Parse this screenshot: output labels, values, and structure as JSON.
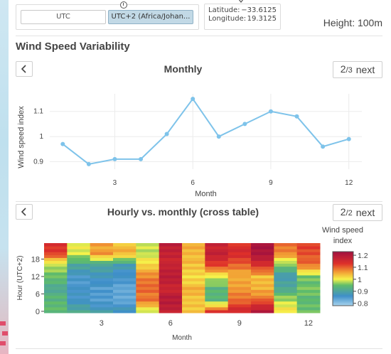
{
  "timezone": {
    "utc_label": "UTC",
    "local_label": "UTC+2 (Africa/Johan..."
  },
  "location": {
    "lat_label": "Latitude:",
    "lat_value": "−33.6125",
    "lon_label": "Longitude:",
    "lon_value": "19.3125"
  },
  "height": {
    "label": "Height: 100m"
  },
  "section": {
    "title": "Wind Speed Variability"
  },
  "panel_monthly": {
    "title": "Monthly",
    "page_current": "2",
    "page_total": "/3",
    "next_label": "next"
  },
  "panel_cross": {
    "title": "Hourly vs. monthly (cross table)",
    "page_current": "2",
    "page_total": "/2",
    "next_label": "next"
  },
  "colors": {
    "line": "#7ec3ea",
    "heat_low": "#3f8fc9",
    "heat_mid": "#f6f24a",
    "heat_high": "#b3123a"
  },
  "chart_data": [
    {
      "type": "line",
      "x": [
        1,
        2,
        3,
        4,
        5,
        6,
        7,
        8,
        9,
        10,
        11,
        12
      ],
      "values": [
        0.97,
        0.89,
        0.91,
        0.91,
        1.01,
        1.15,
        1.0,
        1.05,
        1.1,
        1.08,
        0.96,
        0.99
      ],
      "xticks": [
        "3",
        "6",
        "9",
        "12"
      ],
      "xtick_values": [
        3,
        6,
        9,
        12
      ],
      "yticks": [
        "0.9",
        "1",
        "1.1"
      ],
      "ytick_values": [
        0.9,
        1.0,
        1.1
      ],
      "xlabel": "Month",
      "ylabel": "Wind speed index",
      "ylim": [
        0.87,
        1.17
      ],
      "xlim": [
        0.5,
        12.5
      ],
      "grid": true
    },
    {
      "type": "heatmap",
      "x": [
        1,
        2,
        3,
        4,
        5,
        6,
        7,
        8,
        9,
        10,
        11,
        12
      ],
      "y_hours": [
        0,
        4,
        8,
        12,
        16,
        20
      ],
      "z": [
        [
          0.95,
          0.92,
          0.88,
          0.87,
          0.98,
          1.18,
          1.04,
          1.12,
          1.15,
          1.2,
          1.02,
          0.96
        ],
        [
          0.93,
          0.86,
          0.85,
          0.84,
          1.08,
          1.19,
          1.03,
          0.94,
          1.1,
          1.09,
          0.97,
          0.94
        ],
        [
          0.92,
          0.85,
          0.84,
          0.83,
          1.1,
          1.17,
          1.04,
          0.93,
          1.06,
          1.05,
          0.92,
          0.95
        ],
        [
          0.95,
          0.86,
          0.88,
          0.85,
          1.07,
          1.19,
          1.02,
          1.0,
          1.04,
          1.03,
          0.88,
          0.96
        ],
        [
          0.97,
          0.9,
          0.9,
          0.89,
          1.03,
          1.16,
          1.03,
          1.12,
          1.1,
          1.15,
          0.95,
          1.08
        ],
        [
          1.13,
          1.0,
          1.06,
          1.04,
          0.98,
          1.18,
          1.05,
          1.17,
          1.14,
          1.21,
          1.08,
          1.12
        ]
      ],
      "xticks": [
        "3",
        "6",
        "9",
        "12"
      ],
      "xtick_values": [
        3,
        6,
        9,
        12
      ],
      "yticks": [
        "0",
        "6",
        "12",
        "18"
      ],
      "ytick_values": [
        0,
        6,
        12,
        18
      ],
      "xlabel": "Month",
      "ylabel": "Hour (UTC+2)",
      "colorbar_title": [
        "Wind speed",
        "index"
      ],
      "colorbar_ticks": [
        "0.8",
        "0.9",
        "1",
        "1.1",
        "1.2"
      ],
      "colorbar_tick_values": [
        0.8,
        0.9,
        1.0,
        1.1,
        1.2
      ],
      "zlim": [
        0.78,
        1.23
      ]
    }
  ]
}
